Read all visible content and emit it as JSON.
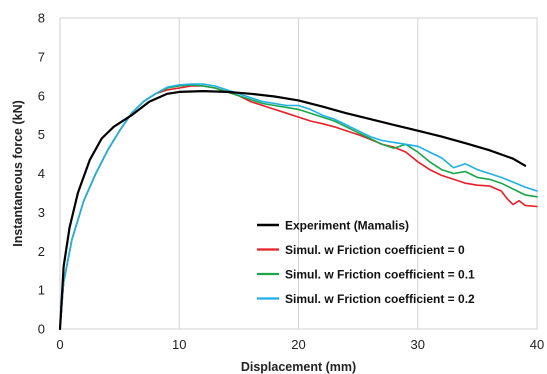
{
  "chart_data": {
    "type": "line",
    "title": "",
    "xlabel": "Displacement (mm)",
    "ylabel": "Instantaneous force (kN)",
    "xlim": [
      0,
      40
    ],
    "ylim": [
      0,
      8
    ],
    "xticks": [
      "0",
      "10",
      "20",
      "30",
      "40"
    ],
    "yticks": [
      "0",
      "1",
      "2",
      "3",
      "4",
      "5",
      "6",
      "7",
      "8"
    ],
    "grid": "vertical",
    "legend_position": "lower-right",
    "series": [
      {
        "name": "Experiment (Mamalis)",
        "color": "#000000",
        "x": [
          0,
          0.3,
          0.8,
          1.5,
          2.5,
          3.5,
          4.5,
          6,
          7.5,
          9,
          10,
          12,
          14,
          16,
          18,
          20,
          22,
          24,
          26,
          28,
          30,
          32,
          34,
          36,
          38,
          39
        ],
        "y": [
          0,
          1.6,
          2.6,
          3.5,
          4.35,
          4.9,
          5.2,
          5.5,
          5.85,
          6.05,
          6.1,
          6.12,
          6.1,
          6.05,
          5.98,
          5.88,
          5.72,
          5.55,
          5.4,
          5.25,
          5.1,
          4.95,
          4.78,
          4.6,
          4.38,
          4.2
        ]
      },
      {
        "name": "Simul. w Friction coefficient = 0",
        "color": "#e8202a",
        "x": [
          0,
          0.3,
          1,
          2,
          3,
          4,
          5,
          6,
          7,
          8,
          9,
          10,
          11,
          12,
          13,
          14,
          15,
          16,
          17,
          18,
          19,
          20,
          21,
          22,
          23,
          24,
          25,
          26,
          27,
          28,
          29,
          30,
          31,
          32,
          33,
          34,
          35,
          36,
          37,
          37.5,
          38,
          38.5,
          39,
          40
        ],
        "y": [
          0,
          1.2,
          2.3,
          3.3,
          4.0,
          4.6,
          5.1,
          5.55,
          5.85,
          6.05,
          6.15,
          6.2,
          6.25,
          6.25,
          6.2,
          6.1,
          6.0,
          5.85,
          5.75,
          5.65,
          5.55,
          5.45,
          5.35,
          5.28,
          5.2,
          5.1,
          5.0,
          4.88,
          4.75,
          4.68,
          4.55,
          4.3,
          4.1,
          3.95,
          3.85,
          3.75,
          3.7,
          3.68,
          3.55,
          3.35,
          3.2,
          3.3,
          3.18,
          3.15
        ]
      },
      {
        "name": "Simul. w Friction coefficient = 0.1",
        "color": "#1aa64a",
        "x": [
          0,
          0.3,
          1,
          2,
          3,
          4,
          5,
          6,
          7,
          8,
          9,
          10,
          11,
          12,
          13,
          14,
          15,
          16,
          17,
          18,
          19,
          20,
          21,
          22,
          23,
          24,
          25,
          26,
          27,
          28,
          29,
          30,
          31,
          32,
          33,
          34,
          35,
          36,
          37,
          38,
          39,
          40
        ],
        "y": [
          0,
          1.2,
          2.3,
          3.3,
          4.0,
          4.6,
          5.1,
          5.55,
          5.85,
          6.05,
          6.2,
          6.25,
          6.28,
          6.25,
          6.2,
          6.1,
          6.0,
          5.9,
          5.8,
          5.75,
          5.7,
          5.65,
          5.55,
          5.45,
          5.35,
          5.2,
          5.05,
          4.9,
          4.75,
          4.65,
          4.75,
          4.55,
          4.3,
          4.1,
          4.0,
          4.05,
          3.9,
          3.85,
          3.75,
          3.6,
          3.45,
          3.4
        ]
      },
      {
        "name": "Simul. w Friction coefficient = 0.2",
        "color": "#1fb0e6",
        "x": [
          0,
          0.3,
          1,
          2,
          3,
          4,
          5,
          6,
          7,
          8,
          9,
          10,
          11,
          12,
          13,
          14,
          15,
          16,
          17,
          18,
          19,
          20,
          21,
          22,
          23,
          24,
          25,
          26,
          27,
          28,
          29,
          30,
          31,
          32,
          33,
          34,
          35,
          36,
          37,
          38,
          39,
          40
        ],
        "y": [
          0,
          1.2,
          2.3,
          3.3,
          4.0,
          4.6,
          5.1,
          5.55,
          5.85,
          6.05,
          6.22,
          6.28,
          6.3,
          6.3,
          6.25,
          6.15,
          6.05,
          5.95,
          5.85,
          5.8,
          5.75,
          5.75,
          5.65,
          5.5,
          5.4,
          5.25,
          5.1,
          4.95,
          4.85,
          4.8,
          4.75,
          4.7,
          4.55,
          4.4,
          4.15,
          4.25,
          4.1,
          4.0,
          3.9,
          3.78,
          3.65,
          3.55
        ]
      }
    ]
  }
}
